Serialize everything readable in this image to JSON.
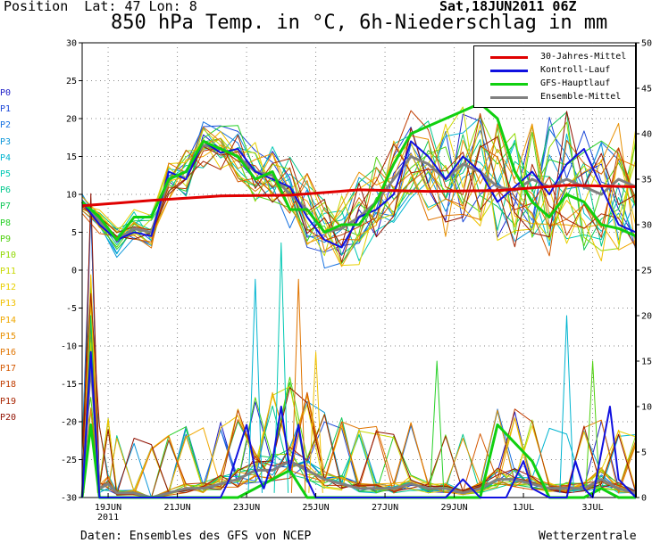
{
  "header": {
    "position_text": "Position  Lat: 47 Lon: 8",
    "date_text": "Sat,18JUN2011 06Z",
    "title": "850 hPa Temp. in °C, 6h-Niederschlag in mm"
  },
  "footer": {
    "source": "Daten: Ensembles des GFS von NCEP",
    "brand": "Wetterzentrale"
  },
  "members": [
    {
      "label": "P0",
      "color": "#2020c8"
    },
    {
      "label": "P1",
      "color": "#1c48d8"
    },
    {
      "label": "P2",
      "color": "#1470e0"
    },
    {
      "label": "P3",
      "color": "#0c96d8"
    },
    {
      "label": "P4",
      "color": "#00b4d0"
    },
    {
      "label": "P5",
      "color": "#00c8b4"
    },
    {
      "label": "P6",
      "color": "#00c88c"
    },
    {
      "label": "P7",
      "color": "#10c858"
    },
    {
      "label": "P8",
      "color": "#28d028"
    },
    {
      "label": "P9",
      "color": "#50d010"
    },
    {
      "label": "P10",
      "color": "#90d800"
    },
    {
      "label": "P11",
      "color": "#c8d800"
    },
    {
      "label": "P12",
      "color": "#e8d000"
    },
    {
      "label": "P13",
      "color": "#f0c000"
    },
    {
      "label": "P14",
      "color": "#f0a800"
    },
    {
      "label": "P15",
      "color": "#e89000"
    },
    {
      "label": "P16",
      "color": "#e07400"
    },
    {
      "label": "P17",
      "color": "#d45800"
    },
    {
      "label": "P18",
      "color": "#c03c00"
    },
    {
      "label": "P19",
      "color": "#a82400"
    },
    {
      "label": "P20",
      "color": "#901000"
    }
  ],
  "legend": [
    {
      "label": "30-Jahres-Mittel",
      "color": "#e00000"
    },
    {
      "label": "Kontroll-Lauf",
      "color": "#1010e0"
    },
    {
      "label": "GFS-Hauptlauf",
      "color": "#10d010"
    },
    {
      "label": "Ensemble-Mittel",
      "color": "#808080"
    }
  ],
  "chart_data": {
    "type": "line",
    "title": "850 hPa Temp. in °C, 6h-Niederschlag in mm",
    "x_unit": "days after 18JUN2011 06Z",
    "xlim": [
      0,
      16
    ],
    "ylim_left": [
      -30,
      30
    ],
    "ylim_right": [
      0,
      50
    ],
    "yticks_left": [
      "30",
      "25",
      "20",
      "15",
      "10",
      "5",
      "0",
      "-5",
      "-10",
      "-15",
      "-20",
      "-25",
      "-30"
    ],
    "yticks_right": [
      "50",
      "45",
      "40",
      "35",
      "30",
      "25",
      "20",
      "15",
      "10",
      "5",
      "0"
    ],
    "xticks": [
      {
        "x": 0.75,
        "label": "19JUN",
        "sub": "2011"
      },
      {
        "x": 2.75,
        "label": "21JUN"
      },
      {
        "x": 4.75,
        "label": "23JUN"
      },
      {
        "x": 6.75,
        "label": "25JUN"
      },
      {
        "x": 8.75,
        "label": "27JUN"
      },
      {
        "x": 10.75,
        "label": "29JUN"
      },
      {
        "x": 12.75,
        "label": "1JUL"
      },
      {
        "x": 14.75,
        "label": "3JUL"
      }
    ],
    "grid": true,
    "legend_position": "top-right",
    "temperature": {
      "mean30y": {
        "x": [
          0,
          2,
          4,
          6,
          8,
          10,
          12,
          14,
          16
        ],
        "y": [
          8.5,
          9.2,
          9.8,
          9.9,
          10.6,
          10.4,
          10.5,
          11.2,
          11
        ]
      },
      "control": {
        "x": [
          0,
          0.5,
          1,
          1.5,
          2,
          2.5,
          3,
          3.5,
          4,
          4.5,
          5,
          5.5,
          6,
          6.5,
          7,
          7.5,
          8,
          8.5,
          9,
          9.5,
          10,
          10.5,
          11,
          11.5,
          12,
          12.5,
          13,
          13.5,
          14,
          14.5,
          15,
          15.5,
          16
        ],
        "y": [
          9,
          6,
          4,
          5,
          4.5,
          13,
          12,
          17,
          15.5,
          16,
          13,
          12,
          11,
          7,
          4,
          3,
          7,
          8,
          10,
          17,
          15,
          12,
          15,
          13,
          9,
          11,
          13,
          10,
          14,
          16,
          11,
          6,
          5
        ]
      },
      "main": {
        "x": [
          0,
          0.5,
          1,
          1.5,
          2,
          2.5,
          3,
          3.5,
          4,
          4.5,
          5,
          5.5,
          6,
          6.5,
          7,
          7.5,
          8,
          8.5,
          9,
          9.5,
          10,
          10.5,
          11,
          11.5,
          12,
          12.5,
          13,
          13.5,
          14,
          14.5,
          15,
          15.5,
          16
        ],
        "y": [
          9,
          7,
          4,
          7,
          7,
          12,
          13,
          17,
          16,
          15,
          12,
          13,
          8,
          8,
          5,
          6,
          6,
          9,
          14,
          18,
          19,
          20,
          21,
          22,
          20,
          13,
          9,
          7,
          10,
          9,
          6,
          5.5,
          4.5
        ]
      },
      "ensemble_mean": {
        "x": [
          0,
          0.5,
          1,
          1.5,
          2,
          2.5,
          3,
          3.5,
          4,
          4.5,
          5,
          5.5,
          6,
          6.5,
          7,
          7.5,
          8,
          8.5,
          9,
          9.5,
          10,
          10.5,
          11,
          11.5,
          12,
          12.5,
          13,
          13.5,
          14,
          14.5,
          15,
          15.5,
          16
        ],
        "y": [
          9,
          6.5,
          4,
          5.5,
          5,
          12,
          13,
          16.5,
          16,
          15,
          13,
          12.5,
          10,
          8,
          5,
          5.5,
          7,
          9,
          12,
          15,
          14,
          12,
          14,
          13,
          11,
          10.5,
          12,
          11,
          12,
          11,
          10,
          12,
          11
        ]
      }
    },
    "precip_mm": {
      "control": {
        "x": [
          0,
          0.25,
          0.5,
          0.75,
          1,
          1.5,
          2,
          2.5,
          3,
          3.5,
          4,
          4.25,
          4.5,
          4.75,
          5,
          5.25,
          5.5,
          5.75,
          6,
          6.25,
          6.5,
          6.75,
          7,
          7.5,
          8,
          8.5,
          9,
          9.5,
          10,
          10.5,
          11,
          11.5,
          12,
          12.25,
          12.5,
          12.75,
          13,
          13.5,
          14,
          14.25,
          14.5,
          14.75,
          15,
          15.25,
          15.5,
          16
        ],
        "y": [
          0,
          16,
          0,
          0,
          0,
          0,
          0,
          0,
          0,
          0,
          0,
          2,
          5,
          8,
          3,
          1,
          4,
          10,
          3,
          8,
          2,
          0,
          0,
          0,
          0,
          0,
          0,
          0,
          0,
          0,
          2,
          0,
          0,
          0,
          2,
          4,
          1,
          0,
          0,
          4,
          1,
          0,
          5,
          10,
          2,
          0
        ]
      },
      "main": {
        "x": [
          0,
          0.25,
          0.5,
          0.75,
          1,
          1.5,
          2,
          2.5,
          3,
          3.5,
          4,
          4.5,
          5,
          5.5,
          6,
          6.5,
          7,
          7.5,
          8,
          8.5,
          9,
          9.5,
          10,
          10.5,
          11,
          11.5,
          12,
          12.5,
          13,
          13.5,
          14,
          14.5,
          15,
          15.5,
          16
        ],
        "y": [
          0,
          8,
          0,
          0,
          0,
          0,
          0,
          0,
          0,
          0,
          0,
          0,
          1,
          2,
          3,
          0,
          0,
          0,
          0,
          0,
          0,
          0,
          0,
          0,
          0,
          0,
          8,
          6,
          4,
          0,
          0,
          0,
          1,
          0,
          0
        ]
      },
      "ensemble_mean": {
        "x": [
          0,
          0.25,
          0.5,
          0.75,
          1,
          1.5,
          2,
          2.5,
          3,
          3.5,
          4,
          4.5,
          5,
          5.5,
          6,
          6.5,
          7,
          7.5,
          8,
          8.5,
          9,
          9.5,
          10,
          10.5,
          11,
          11.5,
          12,
          12.5,
          13,
          13.5,
          14,
          14.5,
          15,
          15.5,
          16
        ],
        "y": [
          0,
          15,
          1,
          1.5,
          0.5,
          0.5,
          0,
          0.5,
          1,
          1,
          1.5,
          2,
          3,
          3,
          4,
          3,
          2,
          1.5,
          1,
          1,
          1,
          1.5,
          1,
          1,
          0.5,
          1,
          2,
          2,
          1.5,
          1,
          1,
          1,
          2,
          1,
          0.5
        ]
      },
      "member_peaks": [
        {
          "member": "P4",
          "x": 5,
          "y": 24
        },
        {
          "member": "P5",
          "x": 5.75,
          "y": 28
        },
        {
          "member": "P16",
          "x": 6.25,
          "y": 24
        },
        {
          "member": "P13",
          "x": 6.75,
          "y": 16
        },
        {
          "member": "P7",
          "x": 0.25,
          "y": 20
        },
        {
          "member": "P11",
          "x": 0.25,
          "y": 17
        },
        {
          "member": "P8",
          "x": 10.25,
          "y": 15
        },
        {
          "member": "P4",
          "x": 14,
          "y": 20
        },
        {
          "member": "P9",
          "x": 14.75,
          "y": 15
        }
      ]
    }
  }
}
